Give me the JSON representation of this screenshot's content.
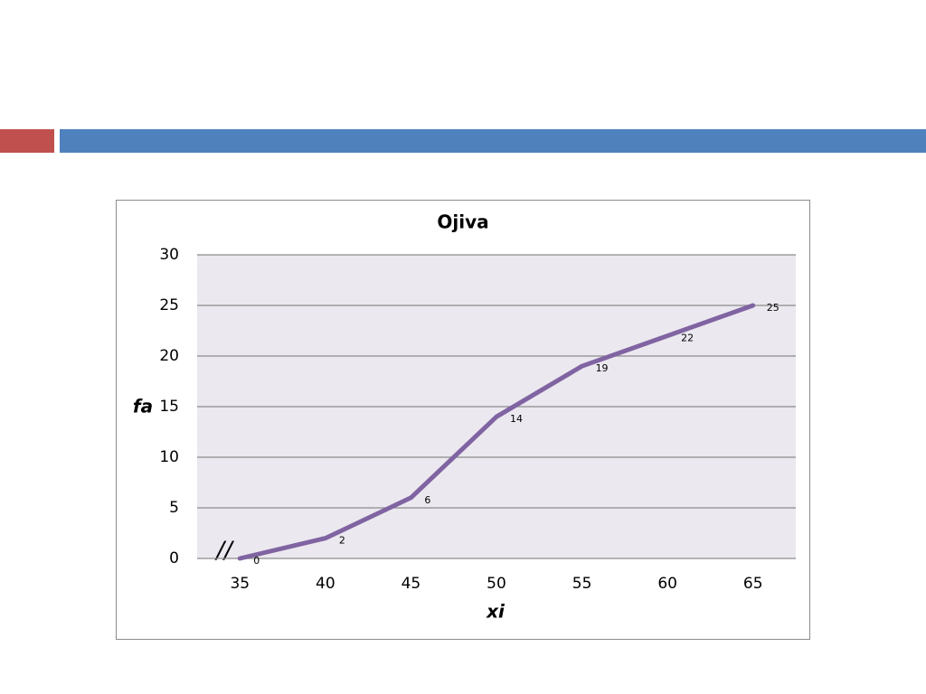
{
  "chart_data": {
    "type": "line",
    "title": "Ojiva",
    "x_label": "xi",
    "y_label": "fa",
    "axis_break": "//",
    "categories": [
      "35",
      "40",
      "45",
      "50",
      "55",
      "60",
      "65"
    ],
    "series": [
      {
        "name": "fa",
        "color": "#8064a2",
        "values": [
          0,
          2,
          6,
          14,
          19,
          22,
          25
        ]
      }
    ],
    "ylim": [
      0,
      30
    ],
    "yticks": [
      0,
      5,
      10,
      15,
      20,
      25,
      30
    ],
    "grid": true,
    "data_labels": true
  }
}
